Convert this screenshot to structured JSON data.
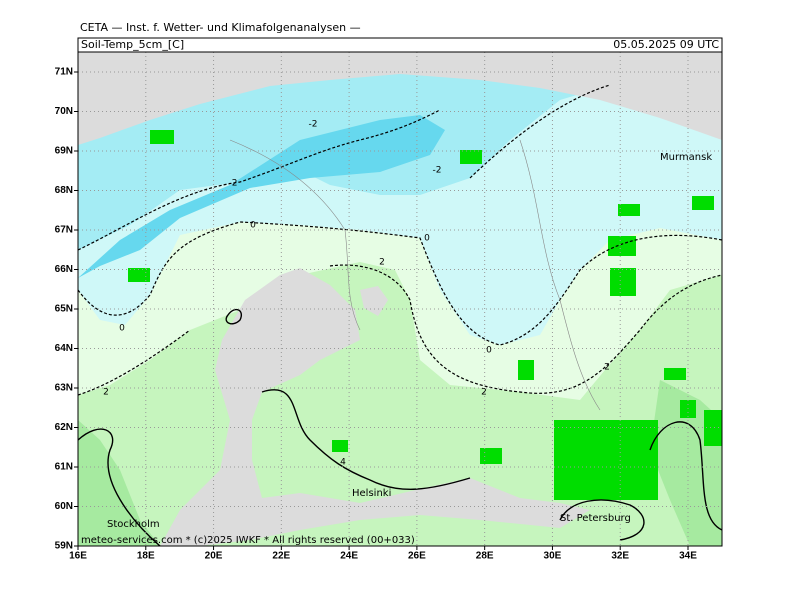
{
  "header": {
    "org": "CETA — Inst. f. Wetter- und Klimafolgenanalysen —",
    "field": "Soil-Temp_5cm_[C]",
    "time": "05.05.2025 09 UTC"
  },
  "map": {
    "lat_ticks": [
      {
        "value": 59,
        "label": "59N"
      },
      {
        "value": 60,
        "label": "60N"
      },
      {
        "value": 61,
        "label": "61N"
      },
      {
        "value": 62,
        "label": "62N"
      },
      {
        "value": 63,
        "label": "63N"
      },
      {
        "value": 64,
        "label": "64N"
      },
      {
        "value": 65,
        "label": "65N"
      },
      {
        "value": 66,
        "label": "66N"
      },
      {
        "value": 67,
        "label": "67N"
      },
      {
        "value": 68,
        "label": "68N"
      },
      {
        "value": 69,
        "label": "69N"
      },
      {
        "value": 70,
        "label": "70N"
      },
      {
        "value": 71,
        "label": "71N"
      }
    ],
    "lon_ticks": [
      {
        "value": 16,
        "label": "16E"
      },
      {
        "value": 18,
        "label": "18E"
      },
      {
        "value": 20,
        "label": "20E"
      },
      {
        "value": 22,
        "label": "22E"
      },
      {
        "value": 24,
        "label": "24E"
      },
      {
        "value": 26,
        "label": "26E"
      },
      {
        "value": 28,
        "label": "28E"
      },
      {
        "value": 30,
        "label": "30E"
      },
      {
        "value": 32,
        "label": "32E"
      },
      {
        "value": 34,
        "label": "34E"
      }
    ],
    "cities": [
      "Murmansk",
      "Helsinki",
      "Stockholm",
      "St. Petersburg"
    ],
    "contour_labels": [
      -2,
      -2,
      -2,
      0,
      0,
      0,
      0,
      2,
      2,
      2,
      2,
      4
    ],
    "footer": "meteo-services.com * (c)2025 IWKF * All rights reserved (00+033)"
  }
}
